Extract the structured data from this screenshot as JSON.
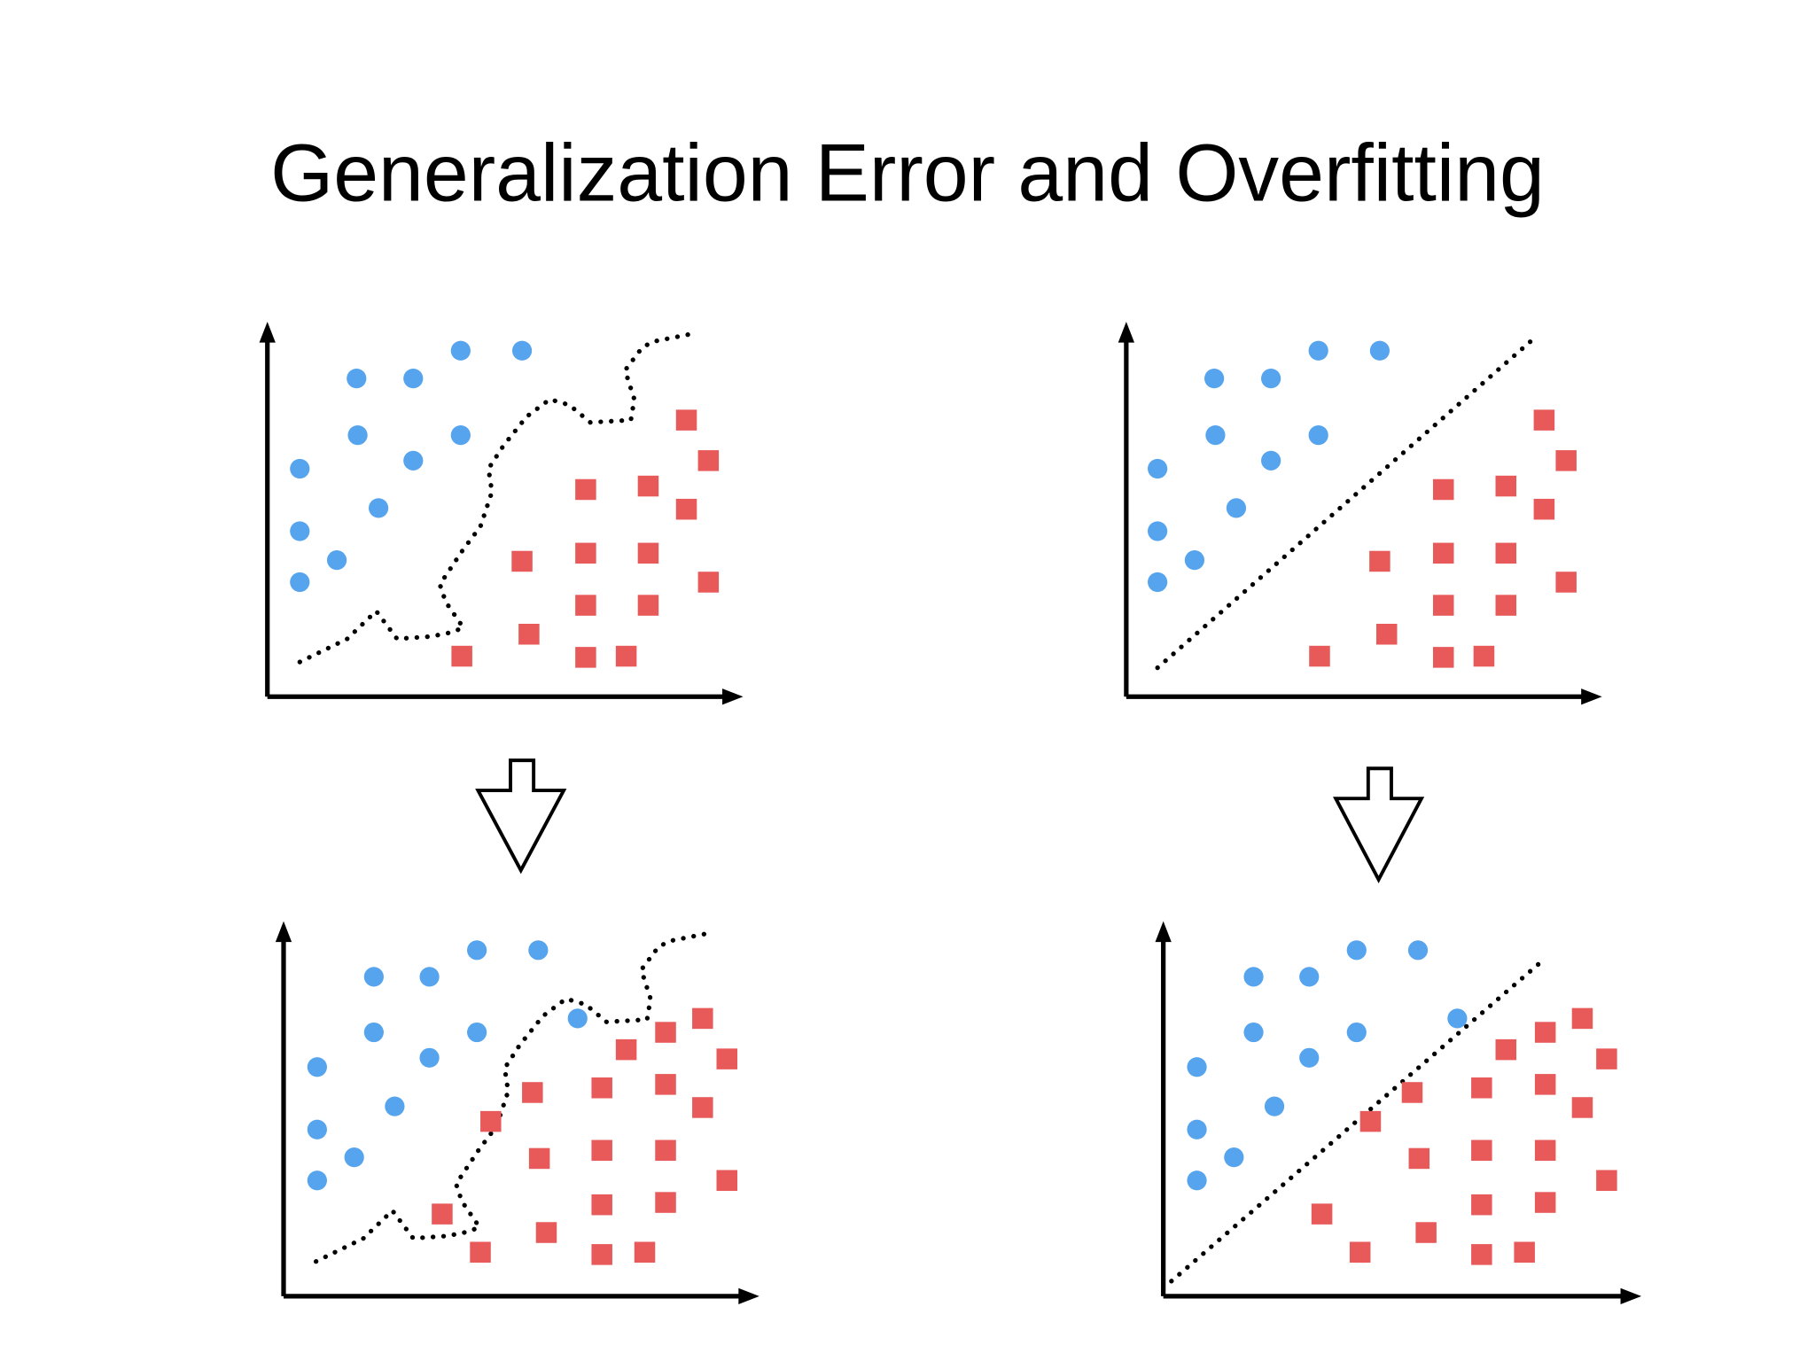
{
  "title": "Generalization Error and Overfitting"
}
